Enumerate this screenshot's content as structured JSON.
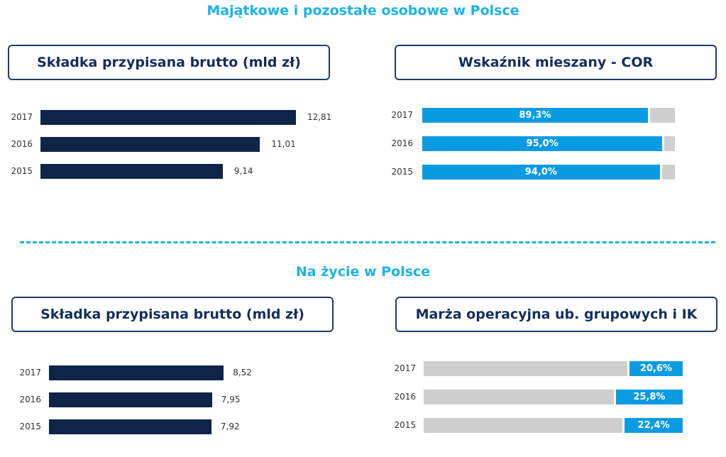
{
  "sections": {
    "top_title": "Majątkowe i pozostałe osobowe w Polsce",
    "bottom_title": "Na życie w Polsce"
  },
  "panels": {
    "top_left": "Składka przypisana brutto (mld zł)",
    "top_right": "Wskaźnik mieszany - COR",
    "bottom_left": "Składka przypisana brutto (mld zł)",
    "bottom_right": "Marża operacyjna ub. grupowych i IK"
  },
  "colors": {
    "navy": "#0e2448",
    "blue": "#0b9be3",
    "gray": "#cfcfcf",
    "accent": "#1bb3e6"
  },
  "chart_data": [
    {
      "id": "top_left",
      "type": "bar",
      "title": "Składka przypisana brutto (mld zł)",
      "categories": [
        "2017",
        "2016",
        "2015"
      ],
      "values": [
        12.81,
        11.01,
        9.14
      ],
      "labels": [
        "12,81",
        "11,01",
        "9,14"
      ]
    },
    {
      "id": "top_right",
      "type": "bar",
      "title": "Wskaźnik mieszany - COR",
      "categories": [
        "2017",
        "2016",
        "2015"
      ],
      "values": [
        89.3,
        95.0,
        94.0
      ],
      "labels": [
        "89,3%",
        "95,0%",
        "94,0%"
      ],
      "xlim": [
        0,
        100
      ]
    },
    {
      "id": "bottom_left",
      "type": "bar",
      "title": "Składka przypisana brutto (mld zł)",
      "categories": [
        "2017",
        "2016",
        "2015"
      ],
      "values": [
        8.52,
        7.95,
        7.92
      ],
      "labels": [
        "8,52",
        "7,95",
        "7,92"
      ]
    },
    {
      "id": "bottom_right",
      "type": "bar",
      "title": "Marża operacyjna ub. grupowych i IK",
      "categories": [
        "2017",
        "2016",
        "2015"
      ],
      "values": [
        20.6,
        25.8,
        22.4
      ],
      "labels": [
        "20,6%",
        "25,8%",
        "22,4%"
      ],
      "xlim": [
        0,
        100
      ]
    }
  ]
}
